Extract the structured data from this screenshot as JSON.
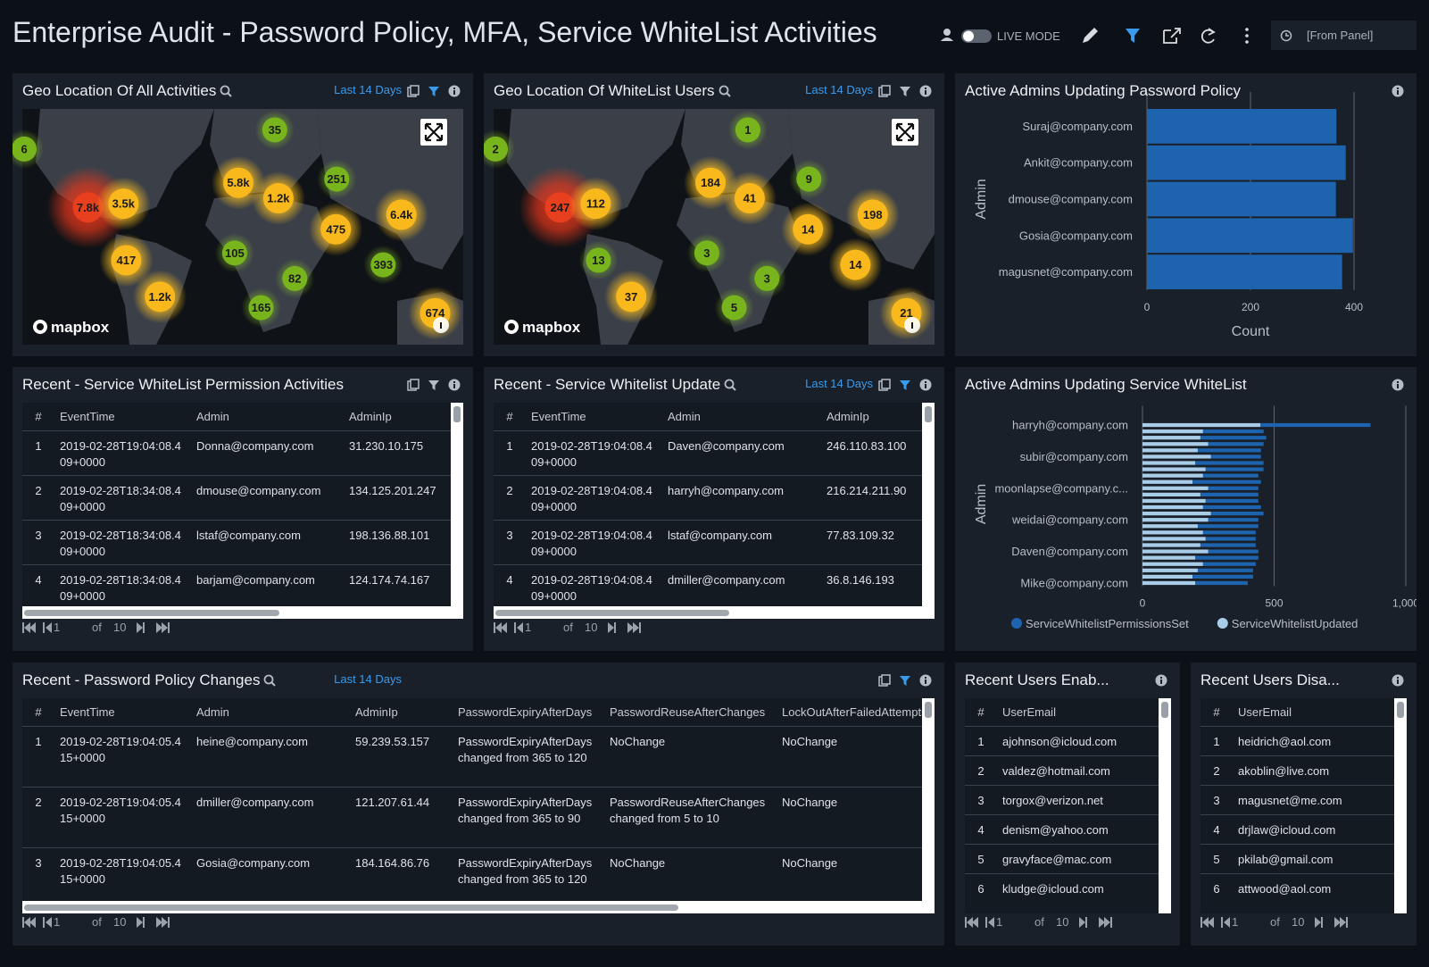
{
  "header": {
    "title": "Enterprise Audit - Password Policy, MFA, Service WhiteList Activities",
    "live_mode": "LIVE MODE",
    "time_range": "[From Panel]"
  },
  "maps": [
    {
      "title": "Geo Location Of All Activities",
      "time_range": "Last 14 Days",
      "attribution": "mapbox",
      "clusters": [
        "6",
        "35",
        "7.8k",
        "3.5k",
        "5.8k",
        "1.2k",
        "251",
        "6.4k",
        "475",
        "105",
        "417",
        "82",
        "393",
        "1.2k",
        "165",
        "674"
      ]
    },
    {
      "title": "Geo Location Of WhiteList Users",
      "time_range": "Last 14 Days",
      "attribution": "mapbox",
      "clusters": [
        "2",
        "1",
        "247",
        "112",
        "184",
        "41",
        "9",
        "198",
        "14",
        "13",
        "3",
        "14",
        "3",
        "37",
        "5",
        "21"
      ]
    }
  ],
  "tables": [
    {
      "title": "Recent - Service WhiteList Permission Activities",
      "columns": [
        "#",
        "EventTime",
        "Admin",
        "AdminIp"
      ],
      "rows": [
        [
          1,
          "2019-02-28T19:04:08.409+0000",
          "Donna@company.com",
          "31.230.10.175"
        ],
        [
          2,
          "2019-02-28T18:34:08.409+0000",
          "dmouse@company.com",
          "134.125.201.247"
        ],
        [
          3,
          "2019-02-28T18:34:08.409+0000",
          "lstaf@company.com",
          "198.136.88.101"
        ],
        [
          4,
          "2019-02-28T18:34:08.409+0000",
          "barjam@company.com",
          "124.174.74.167"
        ]
      ],
      "pager": {
        "page": 1,
        "of": "of",
        "total": 10
      }
    },
    {
      "title": "Recent - Service Whitelist Update",
      "time_range": "Last 14 Days",
      "columns": [
        "#",
        "EventTime",
        "Admin",
        "AdminIp"
      ],
      "rows": [
        [
          1,
          "2019-02-28T19:04:08.409+0000",
          "Daven@company.com",
          "246.110.83.100"
        ],
        [
          2,
          "2019-02-28T19:04:08.409+0000",
          "harryh@company.com",
          "216.214.211.90"
        ],
        [
          3,
          "2019-02-28T19:04:08.409+0000",
          "lstaf@company.com",
          "77.83.109.32"
        ],
        [
          4,
          "2019-02-28T19:04:08.409+0000",
          "dmiller@company.com",
          "36.8.146.193"
        ]
      ],
      "pager": {
        "page": 1,
        "of": "of",
        "total": 10
      }
    },
    {
      "title": "Recent - Password Policy Changes",
      "time_range": "Last 14 Days",
      "columns": [
        "#",
        "EventTime",
        "Admin",
        "AdminIp",
        "PasswordExpiryAfterDays",
        "PasswordReuseAfterChanges",
        "LockOutAfterFailedAttempts"
      ],
      "rows": [
        [
          1,
          "2019-02-28T19:04:05.415+0000",
          "heine@company.com",
          "59.239.53.157",
          "PasswordExpiryAfterDays changed from 365 to 120",
          "NoChange",
          "NoChange"
        ],
        [
          2,
          "2019-02-28T19:04:05.415+0000",
          "dmiller@company.com",
          "121.207.61.44",
          "PasswordExpiryAfterDays changed from 365 to 90",
          "PasswordReuseAfterChanges changed from 5 to 10",
          "NoChange"
        ],
        [
          3,
          "2019-02-28T19:04:05.415+0000",
          "Gosia@company.com",
          "184.164.86.76",
          "PasswordExpiryAfterDays changed from 365 to 120",
          "NoChange",
          "NoChange"
        ]
      ],
      "pager": {
        "page": 1,
        "of": "of",
        "total": 10
      }
    },
    {
      "title": "Recent Users Enab...",
      "columns": [
        "#",
        "UserEmail"
      ],
      "rows": [
        [
          1,
          "ajohnson@icloud.com"
        ],
        [
          2,
          "valdez@hotmail.com"
        ],
        [
          3,
          "torgox@verizon.net"
        ],
        [
          4,
          "denism@yahoo.com"
        ],
        [
          5,
          "gravyface@mac.com"
        ],
        [
          6,
          "kludge@icloud.com"
        ]
      ],
      "pager": {
        "page": 1,
        "of": "of",
        "total": 10
      }
    },
    {
      "title": "Recent Users Disa...",
      "columns": [
        "#",
        "UserEmail"
      ],
      "rows": [
        [
          1,
          "heidrich@aol.com"
        ],
        [
          2,
          "akoblin@live.com"
        ],
        [
          3,
          "magusnet@me.com"
        ],
        [
          4,
          "drjlaw@icloud.com"
        ],
        [
          5,
          "pkilab@gmail.com"
        ],
        [
          6,
          "attwood@aol.com"
        ]
      ],
      "pager": {
        "page": 1,
        "of": "of",
        "total": 10
      }
    }
  ],
  "chart_data": [
    {
      "type": "bar",
      "orientation": "horizontal",
      "title": "Active Admins Updating Password Policy",
      "categories": [
        "Suraj@company.com",
        "Ankit@company.com",
        "dmouse@company.com",
        "Gosia@company.com",
        "magusnet@company.com"
      ],
      "values": [
        366,
        384,
        365,
        398,
        377
      ],
      "color": "#1d63ad",
      "xlabel": "Count",
      "ylabel": "Admin",
      "xlim": [
        0,
        400
      ],
      "xticks": [
        0,
        200,
        400
      ],
      "grid": true
    },
    {
      "type": "stacked_bar",
      "orientation": "horizontal",
      "title": "Active Admins Updating Service WhiteList",
      "categories": [
        "harryh@company.com",
        null,
        null,
        null,
        null,
        "subir@company.com",
        null,
        null,
        null,
        null,
        "moonlapse@company.c...",
        null,
        null,
        null,
        null,
        "weidai@company.com",
        null,
        null,
        null,
        null,
        "Daven@company.com",
        null,
        null,
        null,
        null,
        "Mike@company.com"
      ],
      "series": [
        {
          "name": "ServiceWhitelistPermissionsSet",
          "color": "#1d63ad",
          "values": [
            418,
            230,
            250,
            210,
            240,
            190,
            260,
            220,
            210,
            260,
            190,
            220,
            200,
            220,
            200,
            190,
            230,
            200,
            190,
            210,
            190,
            240,
            200,
            210,
            230,
            200
          ]
        },
        {
          "name": "ServiceWhitelistUpdated",
          "color": "#a9cde9",
          "values": [
            448,
            230,
            220,
            250,
            210,
            260,
            200,
            240,
            230,
            190,
            250,
            220,
            240,
            230,
            260,
            250,
            210,
            230,
            240,
            220,
            250,
            200,
            230,
            210,
            190,
            200
          ]
        }
      ],
      "ylabel": "Admin",
      "xlim": [
        0,
        1000
      ],
      "xticks": [
        0,
        500,
        {
          "value": 1000,
          "label": "1,000"
        }
      ],
      "grid": true,
      "legend": "bottom"
    }
  ]
}
